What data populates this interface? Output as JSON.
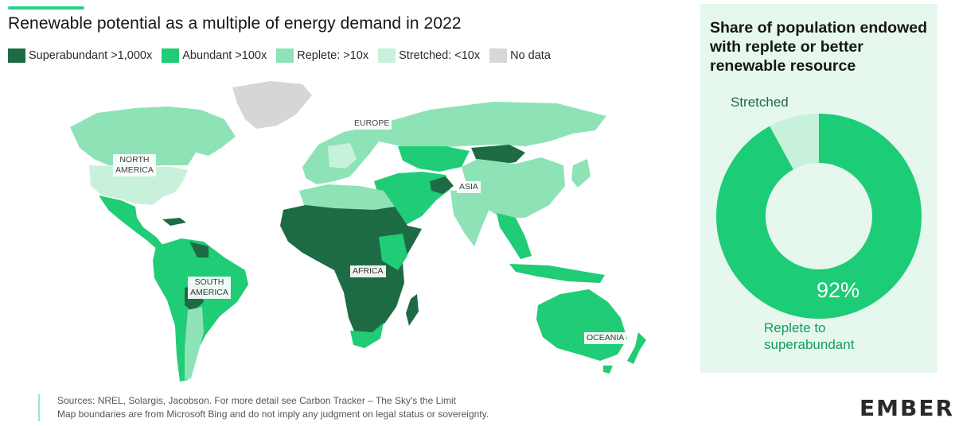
{
  "title": "Renewable potential as a multiple of energy demand in 2022",
  "legend": [
    {
      "label": "Superabundant >1,000x",
      "color": "#1d6b45"
    },
    {
      "label": "Abundant >100x",
      "color": "#20cc75"
    },
    {
      "label": "Replete: >10x",
      "color": "#8ee3b6"
    },
    {
      "label": "Stretched: <10x",
      "color": "#c8f1dc"
    },
    {
      "label": "No data",
      "color": "#d8d8d8"
    }
  ],
  "colors": {
    "accent": "#29d18a",
    "panel_bg": "#e6f7ee",
    "ring_light": "#e6f7ee",
    "ring_main": "#1dcc76"
  },
  "regions": {
    "north_america": "NORTH\nAMERICA",
    "europe": "EUROPE",
    "asia": "ASIA",
    "africa": "AFRICA",
    "south_america": "SOUTH\nAMERICA",
    "oceania": "OCEANIA"
  },
  "panel": {
    "title": "Share of population endowed with replete or better renewable resource",
    "stretched_label": "Stretched",
    "percent_label": "92%",
    "replete_label": "Replete to\nsuperabundant",
    "share_replete_or_better": 92
  },
  "sources": {
    "line1": "Sources: NREL, Solargis, Jacobson. For more detail see Carbon Tracker – The Sky's the Limit",
    "line2": "Map boundaries are from Microsoft Bing and do not imply any judgment on legal status or sovereignty."
  },
  "logo": "EMBER"
}
